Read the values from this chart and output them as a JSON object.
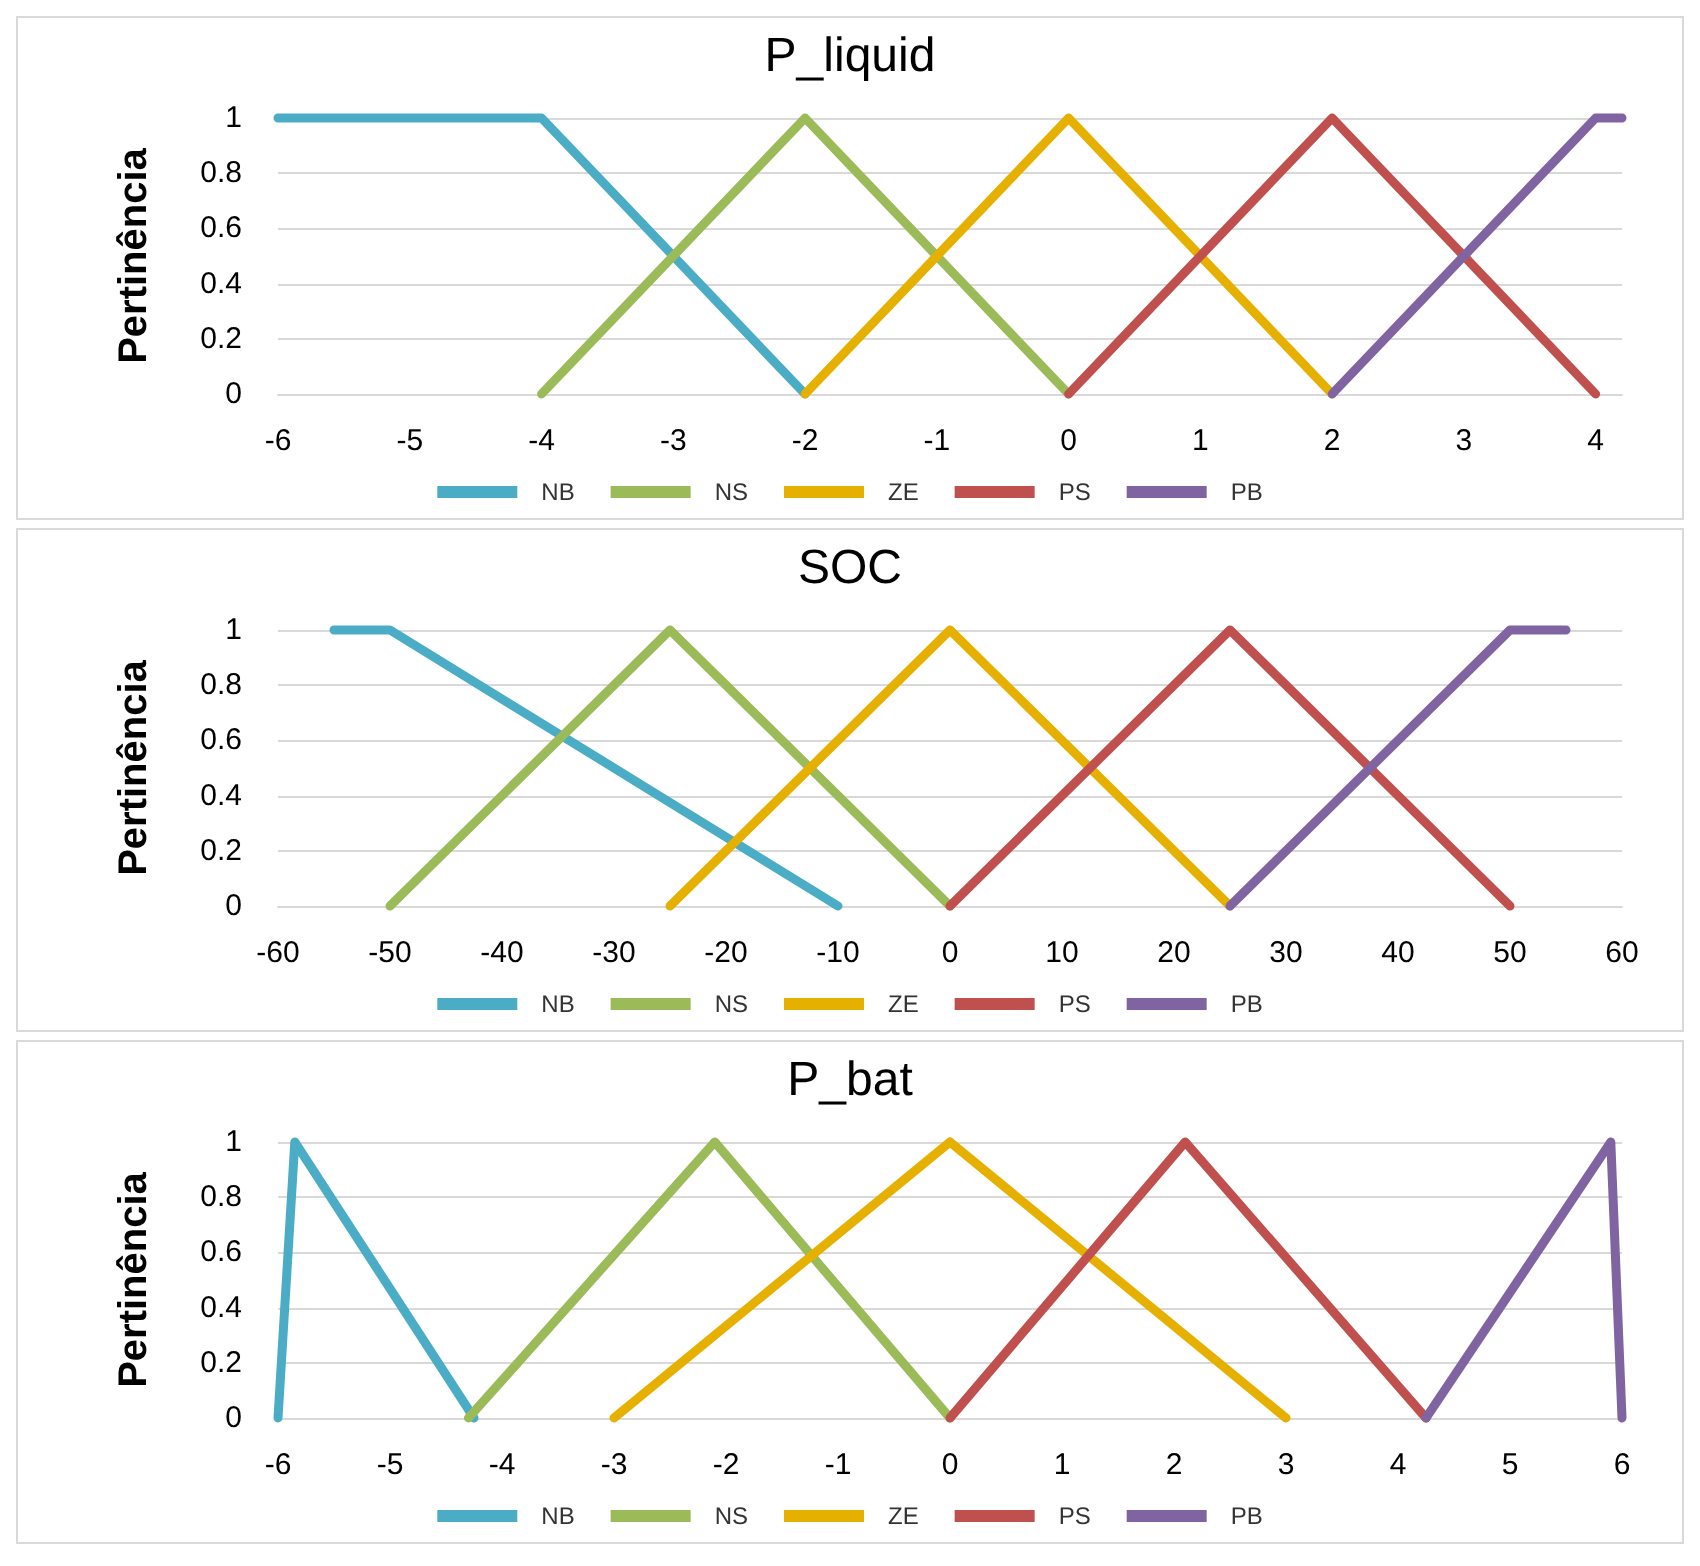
{
  "chart_data": [
    {
      "type": "line",
      "title": "P_liquid",
      "ylabel": "Pertinência",
      "xlim": [
        -6,
        4.2
      ],
      "xticks": [
        -6,
        -5,
        -4,
        -3,
        -2,
        -1,
        0,
        1,
        2,
        3,
        4
      ],
      "ylim": [
        0,
        1
      ],
      "yticks": [
        0,
        0.2,
        0.4,
        0.6,
        0.8,
        1
      ],
      "grid": "y",
      "legend": "bottom",
      "marker": "none",
      "line_style": "solid",
      "series": [
        {
          "name": "NB",
          "color": "#4bacc6",
          "x": [
            -6,
            -4,
            -2
          ],
          "values": [
            1,
            1,
            0
          ]
        },
        {
          "name": "NS",
          "color": "#9bbb59",
          "x": [
            -4,
            -2,
            0
          ],
          "values": [
            0,
            1,
            0
          ]
        },
        {
          "name": "ZE",
          "color": "#e6b000",
          "x": [
            -2,
            0,
            2
          ],
          "values": [
            0,
            1,
            0
          ]
        },
        {
          "name": "PS",
          "color": "#c0504d",
          "x": [
            0,
            2,
            4
          ],
          "values": [
            0,
            1,
            0
          ]
        },
        {
          "name": "PB",
          "color": "#8064a2",
          "x": [
            2,
            4,
            4.2
          ],
          "values": [
            0,
            1,
            1
          ]
        }
      ]
    },
    {
      "type": "line",
      "title": "SOC",
      "ylabel": "Pertinência",
      "xlim": [
        -60,
        60
      ],
      "xticks": [
        -60,
        -50,
        -40,
        -30,
        -20,
        -10,
        0,
        10,
        20,
        30,
        40,
        50,
        60
      ],
      "ylim": [
        0,
        1
      ],
      "yticks": [
        0,
        0.2,
        0.4,
        0.6,
        0.8,
        1
      ],
      "grid": "y",
      "legend": "bottom",
      "marker": "none",
      "line_style": "solid",
      "series": [
        {
          "name": "NB",
          "color": "#4bacc6",
          "x": [
            -55,
            -50,
            -10
          ],
          "values": [
            1,
            1,
            0
          ]
        },
        {
          "name": "NS",
          "color": "#9bbb59",
          "x": [
            -50,
            -25,
            0
          ],
          "values": [
            0,
            1,
            0
          ]
        },
        {
          "name": "ZE",
          "color": "#e6b000",
          "x": [
            -25,
            0,
            25
          ],
          "values": [
            0,
            1,
            0
          ]
        },
        {
          "name": "PS",
          "color": "#c0504d",
          "x": [
            0,
            25,
            50
          ],
          "values": [
            0,
            1,
            0
          ]
        },
        {
          "name": "PB",
          "color": "#8064a2",
          "x": [
            25,
            50,
            55
          ],
          "values": [
            0,
            1,
            1
          ]
        }
      ]
    },
    {
      "type": "line",
      "title": "P_bat",
      "ylabel": "Pertinência",
      "xlim": [
        -6,
        6
      ],
      "xticks": [
        -6,
        -5,
        -4,
        -3,
        -2,
        -1,
        0,
        1,
        2,
        3,
        4,
        5,
        6
      ],
      "ylim": [
        0,
        1
      ],
      "yticks": [
        0,
        0.2,
        0.4,
        0.6,
        0.8,
        1
      ],
      "grid": "y",
      "legend": "bottom",
      "marker": "none",
      "line_style": "solid",
      "series": [
        {
          "name": "NB",
          "color": "#4bacc6",
          "x": [
            -6,
            -5.85,
            -4.25
          ],
          "values": [
            0,
            1,
            0
          ]
        },
        {
          "name": "NS",
          "color": "#9bbb59",
          "x": [
            -4.3,
            -2.1,
            0
          ],
          "values": [
            0,
            1,
            0
          ]
        },
        {
          "name": "ZE",
          "color": "#e6b000",
          "x": [
            -3,
            0,
            3
          ],
          "values": [
            0,
            1,
            0
          ]
        },
        {
          "name": "PS",
          "color": "#c0504d",
          "x": [
            0,
            2.1,
            4.25
          ],
          "values": [
            0,
            1,
            0
          ]
        },
        {
          "name": "PB",
          "color": "#8064a2",
          "x": [
            4.25,
            5.9,
            6
          ],
          "values": [
            0,
            1,
            0
          ]
        }
      ]
    }
  ]
}
